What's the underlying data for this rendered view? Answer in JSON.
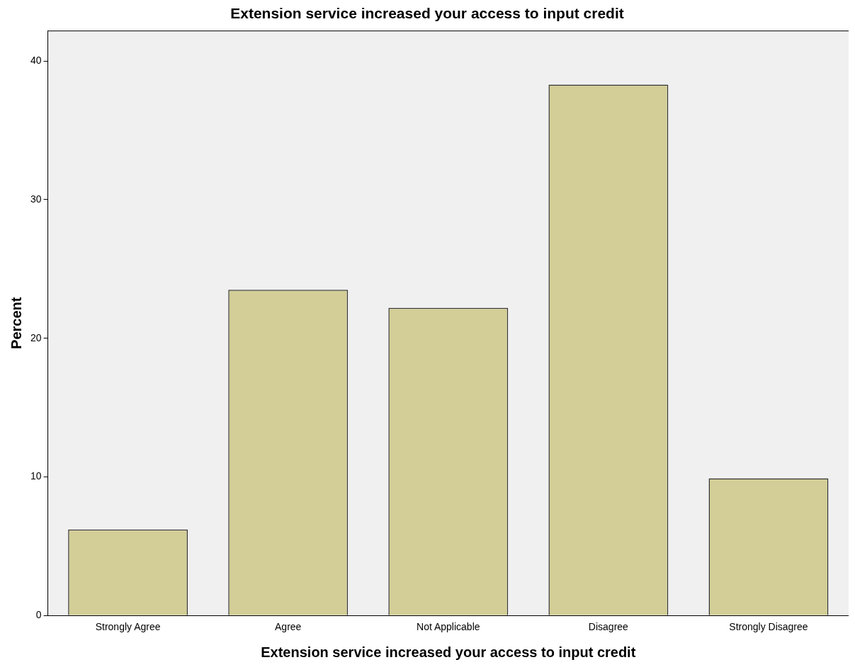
{
  "chart_data": {
    "type": "bar",
    "title": "Extension service increased your access to input credit",
    "xlabel": "Extension service increased your access to input credit",
    "ylabel": "Percent",
    "categories": [
      "Strongly Agree",
      "Agree",
      "Not Applicable",
      "Disagree",
      "Strongly Disagree"
    ],
    "values": [
      6.2,
      23.5,
      22.2,
      38.3,
      9.9
    ],
    "color": "#d3ce97",
    "ylim": [
      0,
      42.2
    ],
    "yticks": [
      0,
      10,
      20,
      30,
      40
    ],
    "grid": false,
    "legend": false
  }
}
